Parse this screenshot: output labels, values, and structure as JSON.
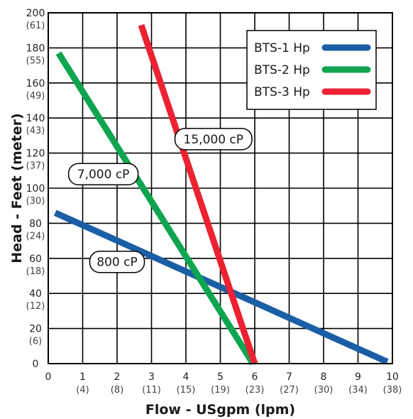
{
  "chart_data": {
    "type": "line",
    "title": "",
    "xlabel": "Flow - USgpm (lpm)",
    "ylabel": "Head - Feet (meter)",
    "xlim": [
      0,
      10
    ],
    "ylim": [
      0,
      200
    ],
    "grid": true,
    "legend_position": "top-right",
    "x_ticks": [
      {
        "value": 0,
        "label": "0",
        "sub": ""
      },
      {
        "value": 1,
        "label": "1",
        "sub": "(4)"
      },
      {
        "value": 2,
        "label": "2",
        "sub": "(8)"
      },
      {
        "value": 3,
        "label": "3",
        "sub": "(11)"
      },
      {
        "value": 4,
        "label": "4",
        "sub": "(15)"
      },
      {
        "value": 5,
        "label": "5",
        "sub": "(19)"
      },
      {
        "value": 6,
        "label": "6",
        "sub": "(23)"
      },
      {
        "value": 7,
        "label": "7",
        "sub": "(27)"
      },
      {
        "value": 8,
        "label": "8",
        "sub": "(30)"
      },
      {
        "value": 9,
        "label": "9",
        "sub": "(34)"
      },
      {
        "value": 10,
        "label": "10",
        "sub": "(38)"
      }
    ],
    "y_ticks": [
      {
        "value": 0,
        "label": "0",
        "sub": ""
      },
      {
        "value": 20,
        "label": "20",
        "sub": "(6)"
      },
      {
        "value": 40,
        "label": "40",
        "sub": "(12)"
      },
      {
        "value": 60,
        "label": "60",
        "sub": "(18)"
      },
      {
        "value": 80,
        "label": "80",
        "sub": "(24)"
      },
      {
        "value": 100,
        "label": "100",
        "sub": "(30)"
      },
      {
        "value": 120,
        "label": "120",
        "sub": "(37)"
      },
      {
        "value": 140,
        "label": "140",
        "sub": "(43)"
      },
      {
        "value": 160,
        "label": "160",
        "sub": "(49)"
      },
      {
        "value": 180,
        "label": "180",
        "sub": "(55)"
      },
      {
        "value": 200,
        "label": "200",
        "sub": "(61)"
      }
    ],
    "series": [
      {
        "name": "BTS-1 Hp",
        "color": "#1a5fa6",
        "points": [
          [
            0.2,
            86
          ],
          [
            9.85,
            1
          ]
        ]
      },
      {
        "name": "BTS-2 Hp",
        "color": "#0fa550",
        "points": [
          [
            0.3,
            177
          ],
          [
            5.95,
            0
          ]
        ]
      },
      {
        "name": "BTS-3 Hp",
        "color": "#ec2232",
        "points": [
          [
            2.7,
            193
          ],
          [
            6.0,
            0
          ]
        ]
      }
    ],
    "annotations": [
      {
        "text": "800 cP",
        "x": 2.0,
        "y": 58
      },
      {
        "text": "7,000 cP",
        "x": 1.6,
        "y": 108
      },
      {
        "text": "15,000 cP",
        "x": 4.8,
        "y": 128
      }
    ]
  }
}
